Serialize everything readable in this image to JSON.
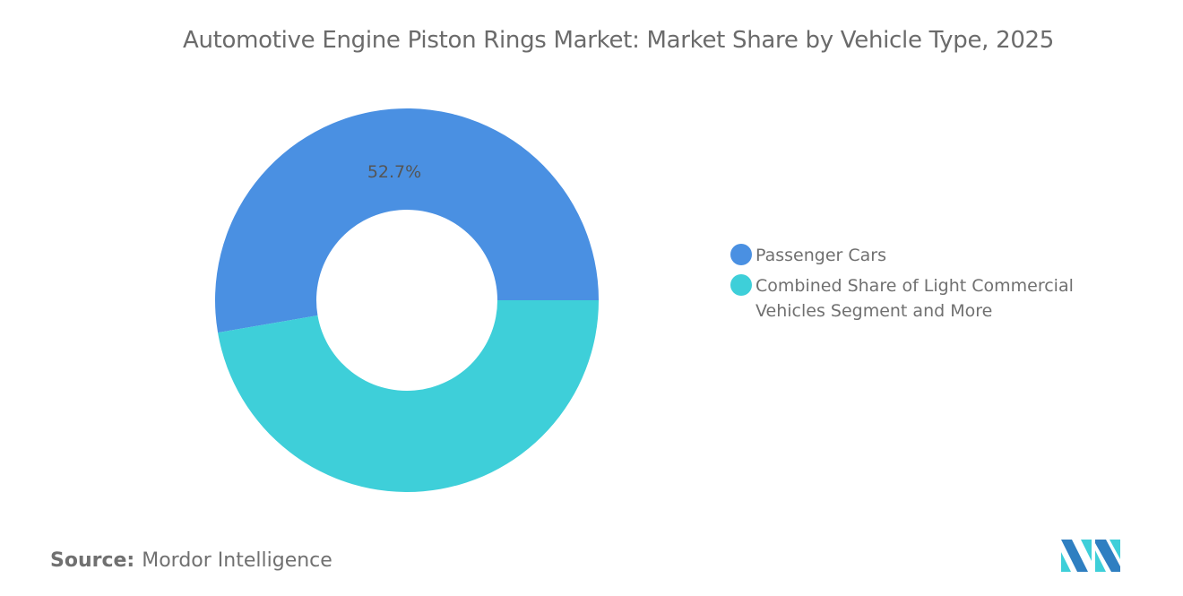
{
  "title": "Automotive Engine Piston Rings Market: Market Share by Vehicle Type, 2025",
  "source": {
    "label": "Source:",
    "value": "Mordor Intelligence"
  },
  "chart_data": {
    "type": "pie",
    "variant": "donut",
    "title": "Automotive Engine Piston Rings Market: Market Share by Vehicle Type, 2025",
    "unit": "%",
    "legend_position": "right",
    "slices": [
      {
        "name": "Passenger Cars",
        "value": 52.7,
        "label": "52.7%",
        "color": "#4a90e2"
      },
      {
        "name": "Combined Share of Light Commercial Vehicles Segment and More",
        "value": 47.3,
        "label": "",
        "color": "#3ecfd9"
      }
    ]
  },
  "logo": {
    "name": "mordor-intelligence-logo",
    "colors": [
      "#2f7fc1",
      "#3ecfd9"
    ]
  }
}
